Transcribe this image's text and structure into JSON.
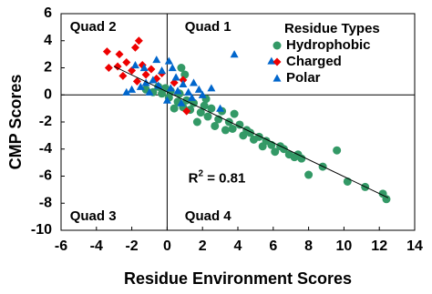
{
  "chart_data": {
    "type": "scatter",
    "x_label": "Residue Environment Scores",
    "y_label": "CMP Scores",
    "xlim": [
      -6,
      14
    ],
    "ylim": [
      -10,
      6
    ],
    "xticks": [
      -6,
      -4,
      -2,
      0,
      2,
      4,
      6,
      8,
      10,
      12,
      14
    ],
    "yticks": [
      -10,
      -8,
      -6,
      -4,
      -2,
      0,
      2,
      4,
      6
    ],
    "legend_title": "Residue Types",
    "legend_position": "upper right",
    "quadrant_lines": true,
    "annotations": [
      {
        "text": "Quad 2",
        "x": -5.5,
        "y": 5
      },
      {
        "text": "Quad 1",
        "x": 1,
        "y": 5
      },
      {
        "text": "Quad 3",
        "x": -5.5,
        "y": -9
      },
      {
        "text": "Quad 4",
        "x": 1,
        "y": -9
      }
    ],
    "r2": {
      "base": "R",
      "sup": "2",
      "rest": " = 0.81",
      "x": 1.2,
      "y": -6.2
    },
    "trendline": {
      "x": [
        -3,
        12.5
      ],
      "y": [
        2.1,
        -7.6
      ],
      "color": "#000000"
    },
    "series": [
      {
        "name": "Hydrophobic",
        "color": "#339966",
        "marker": "circle",
        "x": [
          12.4,
          12.2,
          11.2,
          9.6,
          8.0,
          7.6,
          7.4,
          7.2,
          6.9,
          6.6,
          6.4,
          6.1,
          5.9,
          5.6,
          5.4,
          5.2,
          4.9,
          4.7,
          4.5,
          4.3,
          4.1,
          3.8,
          3.7,
          3.5,
          3.3,
          3.1,
          2.9,
          2.7,
          2.5,
          2.3,
          2.1,
          1.9,
          1.7,
          1.5,
          1.3,
          1.1,
          0.9,
          0.7,
          0.6,
          0.4,
          0.2,
          0.1,
          -0.1,
          -0.3,
          -0.5,
          -0.8,
          -1.2,
          0.8,
          1.0,
          2.2,
          8.8,
          10.2
        ],
        "y": [
          -7.7,
          -7.3,
          -6.8,
          -4.1,
          -5.9,
          -4.7,
          -4.4,
          -4.6,
          -4.4,
          -4.0,
          -3.8,
          -4.2,
          -3.7,
          -3.4,
          -3.8,
          -3.1,
          -3.3,
          -2.8,
          -2.6,
          -3.0,
          -2.2,
          -1.4,
          -2.5,
          -2.0,
          -2.6,
          -1.2,
          -1.8,
          -2.3,
          -1.0,
          -1.6,
          -0.8,
          -1.3,
          -2.0,
          -0.6,
          -1.1,
          -0.4,
          -0.9,
          0.1,
          -0.5,
          -1.0,
          0.3,
          -0.2,
          0.5,
          0.1,
          0.6,
          0.2,
          0.4,
          2.0,
          1.5,
          -0.3,
          -5.3,
          -6.4
        ]
      },
      {
        "name": "Charged",
        "color": "#ee0000",
        "marker": "diamond",
        "x": [
          -3.4,
          -3.3,
          -2.8,
          -2.5,
          -2.3,
          -2.0,
          -1.8,
          -1.6,
          -1.4,
          -1.2,
          -0.9,
          -0.6,
          -0.3,
          0.4,
          0.9,
          1.1,
          -1.7,
          -2.7
        ],
        "y": [
          3.2,
          2.0,
          2.1,
          1.4,
          2.4,
          1.8,
          3.5,
          4.0,
          2.2,
          1.5,
          1.9,
          1.2,
          1.6,
          0.9,
          1.1,
          -1.2,
          1.0,
          3.0
        ]
      },
      {
        "name": "Polar",
        "color": "#0066cc",
        "marker": "triangle",
        "x": [
          3.8,
          5.9,
          3.0,
          2.5,
          -2.0,
          -2.3,
          -1.5,
          -1.2,
          -1.0,
          -0.8,
          -0.5,
          -0.3,
          0.1,
          0.3,
          0.5,
          0.2,
          0.6,
          0.9,
          1.2,
          1.5,
          1.8,
          -0.6,
          -1.8,
          0.0,
          1.4,
          -1.3,
          0.8,
          2.0
        ],
        "y": [
          3.0,
          2.5,
          -1.0,
          0.5,
          0.4,
          0.2,
          0.6,
          0.9,
          0.2,
          1.1,
          0.7,
          1.8,
          2.5,
          2.0,
          1.3,
          0.5,
          0.3,
          0.8,
          0.2,
          0.9,
          0.4,
          2.6,
          2.2,
          -0.4,
          -0.2,
          2.0,
          -0.6,
          0.0
        ]
      }
    ]
  }
}
